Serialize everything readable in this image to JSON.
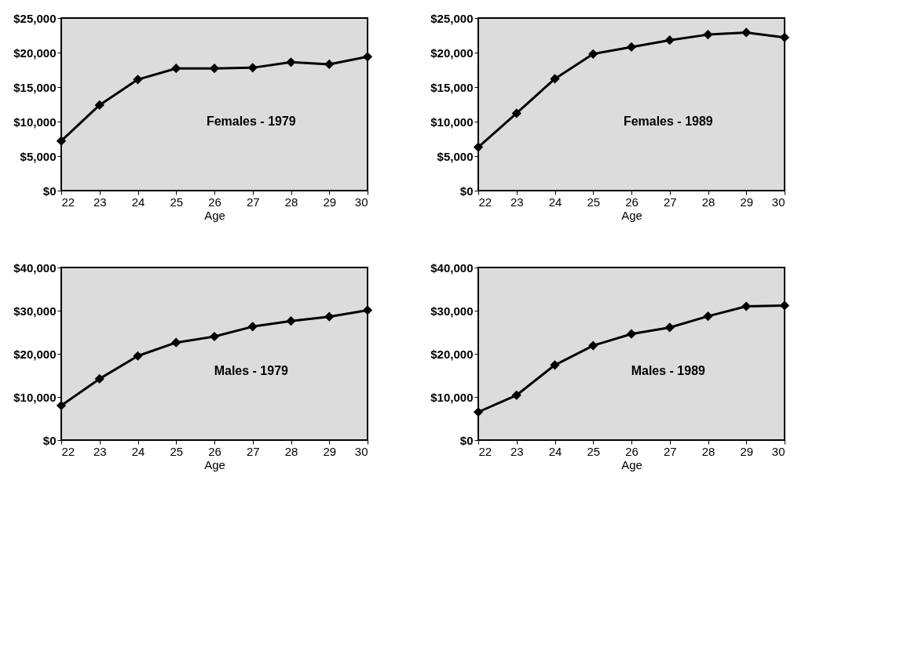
{
  "chart_data": [
    {
      "type": "line",
      "xlabel": "Age",
      "annotations": [
        "Females - 1979"
      ],
      "x": [
        22,
        23,
        24,
        25,
        26,
        27,
        28,
        29,
        30
      ],
      "xlim": [
        22,
        30
      ],
      "xticks": [
        22,
        23,
        24,
        25,
        26,
        27,
        28,
        29,
        30
      ],
      "ylim": [
        0,
        25000
      ],
      "yticks": [
        {
          "value": 0,
          "label": "$0"
        },
        {
          "value": 5000,
          "label": "$5,000"
        },
        {
          "value": 10000,
          "label": "$10,000"
        },
        {
          "value": 15000,
          "label": "$15,000"
        },
        {
          "value": 20000,
          "label": "$20,000"
        },
        {
          "value": 25000,
          "label": "$25,000"
        }
      ],
      "grid": false,
      "legend": false,
      "marker": "diamond",
      "line_style": "solid",
      "series": [
        {
          "color": "#000000",
          "values": [
            7200,
            12400,
            16100,
            17700,
            17700,
            17800,
            18600,
            18300,
            19400
          ]
        }
      ]
    },
    {
      "type": "line",
      "xlabel": "Age",
      "annotations": [
        "Females - 1989"
      ],
      "x": [
        22,
        23,
        24,
        25,
        26,
        27,
        28,
        29,
        30
      ],
      "xlim": [
        22,
        30
      ],
      "xticks": [
        22,
        23,
        24,
        25,
        26,
        27,
        28,
        29,
        30
      ],
      "ylim": [
        0,
        25000
      ],
      "yticks": [
        {
          "value": 0,
          "label": "$0"
        },
        {
          "value": 5000,
          "label": "$5,000"
        },
        {
          "value": 10000,
          "label": "$10,000"
        },
        {
          "value": 15000,
          "label": "$15,000"
        },
        {
          "value": 20000,
          "label": "$20,000"
        },
        {
          "value": 25000,
          "label": "$25,000"
        }
      ],
      "grid": false,
      "legend": false,
      "marker": "diamond",
      "line_style": "solid",
      "series": [
        {
          "color": "#000000",
          "values": [
            6300,
            11200,
            16200,
            19800,
            20800,
            21800,
            22600,
            22900,
            22200
          ]
        }
      ]
    },
    {
      "type": "line",
      "xlabel": "Age",
      "annotations": [
        "Males - 1979"
      ],
      "x": [
        22,
        23,
        24,
        25,
        26,
        27,
        28,
        29,
        30
      ],
      "xlim": [
        22,
        30
      ],
      "xticks": [
        22,
        23,
        24,
        25,
        26,
        27,
        28,
        29,
        30
      ],
      "ylim": [
        0,
        40000
      ],
      "yticks": [
        {
          "value": 0,
          "label": "$0"
        },
        {
          "value": 10000,
          "label": "$10,000"
        },
        {
          "value": 20000,
          "label": "$20,000"
        },
        {
          "value": 30000,
          "label": "$30,000"
        },
        {
          "value": 40000,
          "label": "$40,000"
        }
      ],
      "grid": false,
      "legend": false,
      "marker": "diamond",
      "line_style": "solid",
      "series": [
        {
          "color": "#000000",
          "values": [
            8000,
            14200,
            19500,
            22600,
            24000,
            26300,
            27600,
            28600,
            30100
          ]
        }
      ]
    },
    {
      "type": "line",
      "xlabel": "Age",
      "annotations": [
        "Males - 1989"
      ],
      "x": [
        22,
        23,
        24,
        25,
        26,
        27,
        28,
        29,
        30
      ],
      "xlim": [
        22,
        30
      ],
      "xticks": [
        22,
        23,
        24,
        25,
        26,
        27,
        28,
        29,
        30
      ],
      "ylim": [
        0,
        40000
      ],
      "yticks": [
        {
          "value": 0,
          "label": "$0"
        },
        {
          "value": 10000,
          "label": "$10,000"
        },
        {
          "value": 20000,
          "label": "$20,000"
        },
        {
          "value": 30000,
          "label": "$30,000"
        },
        {
          "value": 40000,
          "label": "$40,000"
        }
      ],
      "grid": false,
      "legend": false,
      "marker": "diamond",
      "line_style": "solid",
      "series": [
        {
          "color": "#000000",
          "values": [
            6500,
            10400,
            17400,
            21900,
            24600,
            26100,
            28700,
            31000,
            31200
          ]
        }
      ]
    }
  ]
}
